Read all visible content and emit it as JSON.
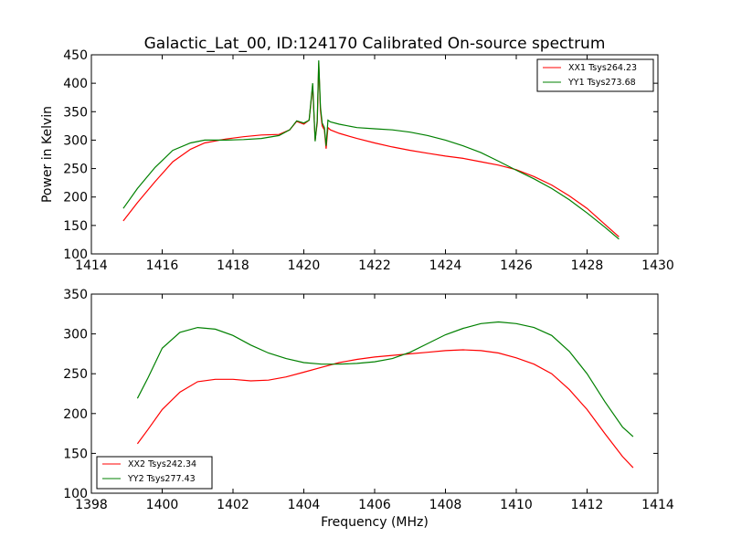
{
  "figure": {
    "title": "Galactic_Lat_00, ID:124170 Calibrated On-source spectrum"
  },
  "chart_data": [
    {
      "type": "line",
      "title": "Galactic_Lat_00, ID:124170 Calibrated On-source spectrum",
      "xlabel": "",
      "ylabel": "Power in Kelvin",
      "xlim": [
        1414,
        1430
      ],
      "ylim": [
        100,
        450
      ],
      "xticks": [
        1414,
        1416,
        1418,
        1420,
        1422,
        1424,
        1426,
        1428,
        1430
      ],
      "yticks": [
        100,
        150,
        200,
        250,
        300,
        350,
        400,
        450
      ],
      "legend_position": "top-right",
      "series": [
        {
          "name": "XX1 Tsys264.23",
          "color": "#ff0000",
          "x": [
            1414.9,
            1415.3,
            1415.8,
            1416.3,
            1416.8,
            1417.2,
            1417.8,
            1418.3,
            1418.8,
            1419.3,
            1419.6,
            1419.8,
            1420.0,
            1420.15,
            1420.25,
            1420.32,
            1420.38,
            1420.42,
            1420.47,
            1420.52,
            1420.58,
            1420.63,
            1420.68,
            1420.75,
            1421.0,
            1421.5,
            1422.0,
            1422.5,
            1423.0,
            1423.5,
            1424.0,
            1424.5,
            1425.0,
            1425.5,
            1426.0,
            1426.5,
            1427.0,
            1427.5,
            1428.0,
            1428.5,
            1428.9
          ],
          "values": [
            158,
            190,
            227,
            262,
            284,
            295,
            302,
            306,
            309,
            310,
            318,
            333,
            328,
            335,
            395,
            300,
            330,
            435,
            352,
            325,
            318,
            285,
            322,
            318,
            312,
            303,
            295,
            288,
            282,
            277,
            272,
            268,
            262,
            256,
            248,
            236,
            221,
            202,
            180,
            152,
            130
          ]
        },
        {
          "name": "YY1 Tsys273.68",
          "color": "#008000",
          "x": [
            1414.9,
            1415.3,
            1415.8,
            1416.3,
            1416.8,
            1417.2,
            1417.8,
            1418.3,
            1418.8,
            1419.3,
            1419.6,
            1419.8,
            1420.0,
            1420.15,
            1420.25,
            1420.32,
            1420.38,
            1420.42,
            1420.47,
            1420.52,
            1420.58,
            1420.63,
            1420.68,
            1420.75,
            1421.0,
            1421.5,
            1422.0,
            1422.5,
            1423.0,
            1423.5,
            1424.0,
            1424.5,
            1425.0,
            1425.5,
            1426.0,
            1426.5,
            1427.0,
            1427.5,
            1428.0,
            1428.5,
            1428.9
          ],
          "values": [
            180,
            215,
            252,
            282,
            295,
            300,
            300,
            301,
            303,
            308,
            318,
            334,
            330,
            335,
            400,
            298,
            335,
            440,
            358,
            330,
            322,
            290,
            335,
            332,
            328,
            322,
            320,
            318,
            314,
            308,
            300,
            290,
            278,
            263,
            247,
            232,
            215,
            195,
            172,
            147,
            126
          ]
        }
      ]
    },
    {
      "type": "line",
      "title": "",
      "xlabel": "Frequency (MHz)",
      "ylabel": "",
      "xlim": [
        1398,
        1414
      ],
      "ylim": [
        100,
        350
      ],
      "xticks": [
        1398,
        1400,
        1402,
        1404,
        1406,
        1408,
        1410,
        1412,
        1414
      ],
      "yticks": [
        100,
        150,
        200,
        250,
        300,
        350
      ],
      "legend_position": "bottom-left",
      "series": [
        {
          "name": "XX2 Tsys242.34",
          "color": "#ff0000",
          "x": [
            1399.3,
            1399.6,
            1400.0,
            1400.5,
            1401.0,
            1401.5,
            1402.0,
            1402.5,
            1403.0,
            1403.5,
            1404.0,
            1404.5,
            1405.0,
            1405.5,
            1406.0,
            1406.5,
            1407.0,
            1407.5,
            1408.0,
            1408.5,
            1409.0,
            1409.5,
            1410.0,
            1410.5,
            1411.0,
            1411.5,
            1412.0,
            1412.5,
            1413.0,
            1413.3
          ],
          "values": [
            162,
            180,
            205,
            227,
            240,
            243,
            243,
            241,
            242,
            246,
            252,
            258,
            264,
            268,
            271,
            273,
            275,
            277,
            279,
            280,
            279,
            276,
            270,
            262,
            250,
            230,
            205,
            175,
            146,
            132
          ]
        },
        {
          "name": "YY2 Tsys277.43",
          "color": "#008000",
          "x": [
            1399.3,
            1399.6,
            1400.0,
            1400.5,
            1401.0,
            1401.5,
            1402.0,
            1402.5,
            1403.0,
            1403.5,
            1404.0,
            1404.5,
            1405.0,
            1405.5,
            1406.0,
            1406.5,
            1407.0,
            1407.5,
            1408.0,
            1408.5,
            1409.0,
            1409.5,
            1410.0,
            1410.5,
            1411.0,
            1411.5,
            1412.0,
            1412.5,
            1413.0,
            1413.3
          ],
          "values": [
            219,
            245,
            282,
            302,
            308,
            306,
            298,
            286,
            276,
            269,
            264,
            262,
            262,
            263,
            265,
            269,
            277,
            288,
            299,
            307,
            313,
            315,
            313,
            308,
            298,
            278,
            250,
            215,
            183,
            171
          ]
        }
      ]
    }
  ]
}
